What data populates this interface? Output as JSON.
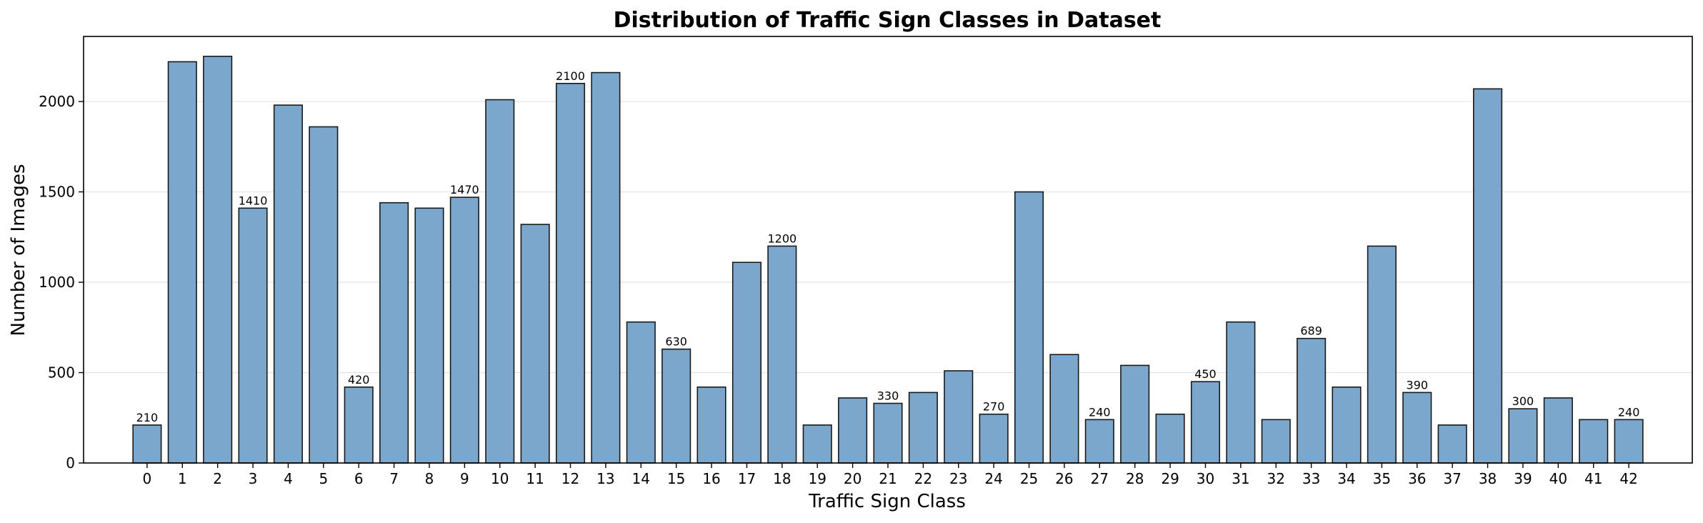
{
  "chart_data": {
    "type": "bar",
    "title": "Distribution of Traffic Sign Classes in Dataset",
    "xlabel": "Traffic Sign Class",
    "ylabel": "Number of Images",
    "categories": [
      "0",
      "1",
      "2",
      "3",
      "4",
      "5",
      "6",
      "7",
      "8",
      "9",
      "10",
      "11",
      "12",
      "13",
      "14",
      "15",
      "16",
      "17",
      "18",
      "19",
      "20",
      "21",
      "22",
      "23",
      "24",
      "25",
      "26",
      "27",
      "28",
      "29",
      "30",
      "31",
      "32",
      "33",
      "34",
      "35",
      "36",
      "37",
      "38",
      "39",
      "40",
      "41",
      "42"
    ],
    "values": [
      210,
      2220,
      2250,
      1410,
      1980,
      1860,
      420,
      1440,
      1410,
      1470,
      2010,
      1320,
      2100,
      2160,
      780,
      630,
      420,
      1110,
      1200,
      210,
      360,
      330,
      390,
      510,
      270,
      1500,
      600,
      240,
      540,
      270,
      450,
      780,
      240,
      689,
      420,
      1200,
      390,
      210,
      2070,
      300,
      360,
      240,
      240
    ],
    "labeled_indices": [
      0,
      3,
      6,
      9,
      12,
      15,
      18,
      21,
      24,
      27,
      30,
      33,
      36,
      39,
      42
    ],
    "ylim": [
      0,
      2360
    ],
    "yticks": [
      0,
      500,
      1000,
      1500,
      2000
    ],
    "grid": "y",
    "legend": "none",
    "bar_color": "#7ba7cc",
    "edge_color": "#1a1a1a"
  }
}
